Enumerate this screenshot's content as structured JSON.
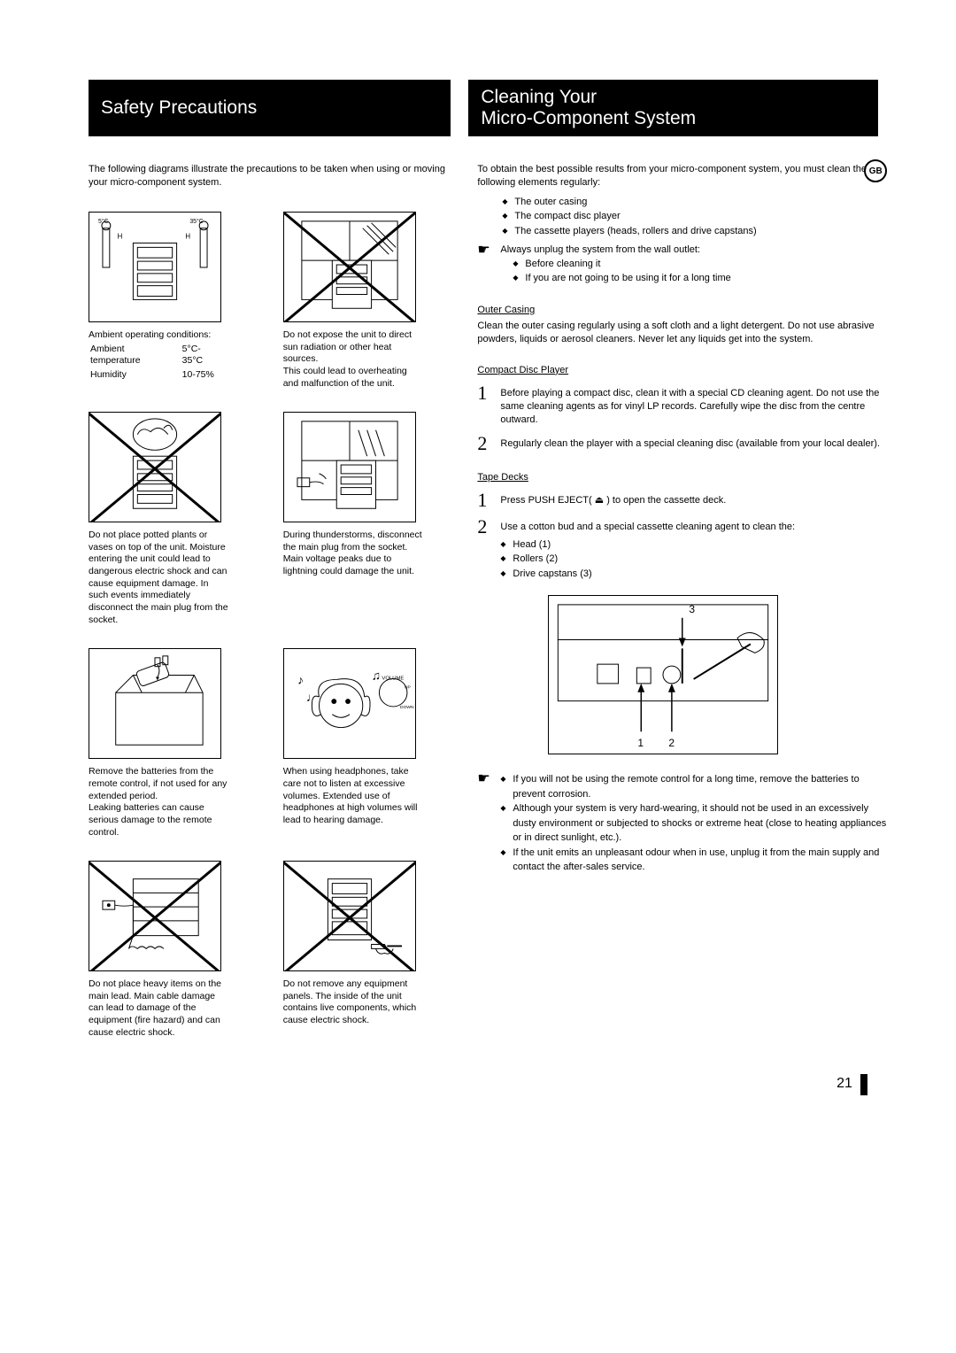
{
  "headers": {
    "left": "Safety Precautions",
    "right_line1": "Cleaning Your",
    "right_line2": "Micro-Component System"
  },
  "badge": "GB",
  "left": {
    "intro": "The following diagrams illustrate the precautions to be taken when using or moving your micro-component system.",
    "items": [
      {
        "caption_lines": [
          "Ambient operating conditions:"
        ],
        "table": [
          [
            "Ambient temperature",
            "5°C-35°C"
          ],
          [
            "Humidity",
            "10-75%"
          ]
        ],
        "cross": false
      },
      {
        "caption_lines": [
          "Do not expose the unit to direct sun radiation or other heat sources.",
          "This could lead to overheating and malfunction of the unit."
        ],
        "cross": true
      },
      {
        "caption_lines": [
          "Do not place potted plants or vases on top of the unit. Moisture entering the unit could lead to dangerous electric shock and can cause equipment damage. In such events immediately disconnect the main plug from the socket."
        ],
        "cross": true
      },
      {
        "caption_lines": [
          "During thunderstorms, disconnect the main plug from the socket.",
          "Main voltage peaks due to lightning could damage the unit."
        ],
        "cross": false
      },
      {
        "caption_lines": [
          "Remove the batteries from the remote control, if not used for any extended period.",
          "Leaking batteries can cause serious damage to the remote control."
        ],
        "cross": false
      },
      {
        "caption_lines": [
          "When using headphones, take care not to listen at excessive volumes. Extended use of headphones at high volumes will lead to hearing damage."
        ],
        "cross": false
      },
      {
        "caption_lines": [
          "Do not place heavy items on the main lead. Main cable damage can lead to damage of the equipment (fire hazard) and can cause electric shock."
        ],
        "cross": true
      },
      {
        "caption_lines": [
          "Do not remove any equipment panels. The inside of the unit contains live components, which cause electric shock."
        ],
        "cross": true
      }
    ]
  },
  "right": {
    "intro": "To obtain the best possible results from your micro-component system, you must clean the following elements regularly:",
    "intro_bullets": [
      "The outer casing",
      "The compact disc player",
      "The cassette players (heads, rollers and drive capstans)"
    ],
    "hand_intro": "Always unplug the system from the wall outlet:",
    "hand_bullets": [
      "Before cleaning it",
      "If you are not going to be using it for a long time"
    ],
    "outer_title": "Outer Casing",
    "outer_text": "Clean the outer casing regularly using a soft cloth and a light detergent. Do not use abrasive powders, liquids or aerosol cleaners. Never let any liquids get into the system.",
    "cd_title": "Compact Disc Player",
    "cd_steps": [
      "Before playing a compact disc, clean it with a special CD cleaning agent. Do not use the same cleaning agents as for vinyl LP records. Carefully wipe the disc from the centre outward.",
      "Regularly clean the player with a special cleaning disc (available from your local dealer)."
    ],
    "tape_title": "Tape Decks",
    "tape_step1": "Press PUSH EJECT( ⏏ ) to open the cassette deck.",
    "tape_step2": "Use a cotton bud and a special cassette cleaning agent to clean the:",
    "tape_bullets": [
      "Head (1)",
      "Rollers (2)",
      "Drive capstans (3)"
    ],
    "diagram_labels": {
      "n1": "1",
      "n2": "2",
      "n3": "3"
    },
    "final_bullets": [
      "If you will not be using the remote control for a long time, remove the batteries to prevent corrosion.",
      "Although your system is very hard-wearing, it should not be used in an excessively dusty environment or subjected to shocks or extreme heat (close to heating appliances or in direct sunlight, etc.).",
      "If the unit emits an unpleasant odour when in use, unplug it from the main supply and contact the after-sales service."
    ]
  },
  "page_number": "21"
}
